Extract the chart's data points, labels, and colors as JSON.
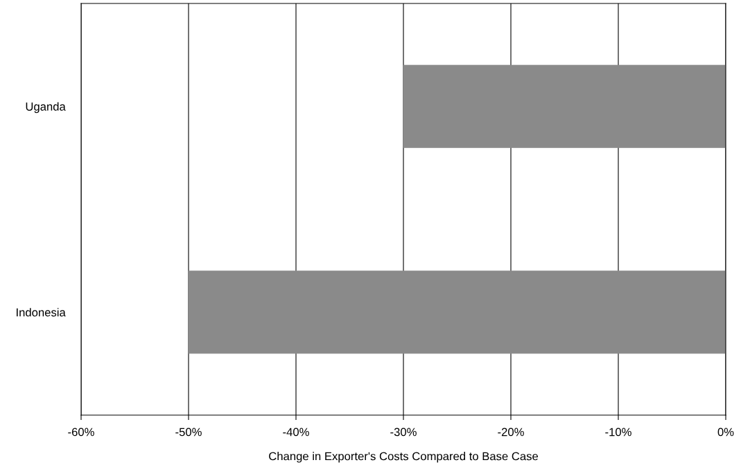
{
  "chart_data": {
    "type": "bar",
    "orientation": "horizontal",
    "xlabel": "Change in Exporter's Costs Compared to Base Case",
    "categories": [
      "Uganda",
      "Indonesia"
    ],
    "values": [
      -30,
      -50
    ],
    "color": "#8a8a8a",
    "xlim": [
      -60,
      0
    ],
    "xticks": [
      {
        "value": -60,
        "label": "-60%"
      },
      {
        "value": -50,
        "label": "-50%"
      },
      {
        "value": -40,
        "label": "-40%"
      },
      {
        "value": -30,
        "label": "-30%"
      },
      {
        "value": -20,
        "label": "-20%"
      },
      {
        "value": -10,
        "label": "-10%"
      },
      {
        "value": 0,
        "label": "0%"
      }
    ],
    "grid": "x",
    "legend": false
  }
}
